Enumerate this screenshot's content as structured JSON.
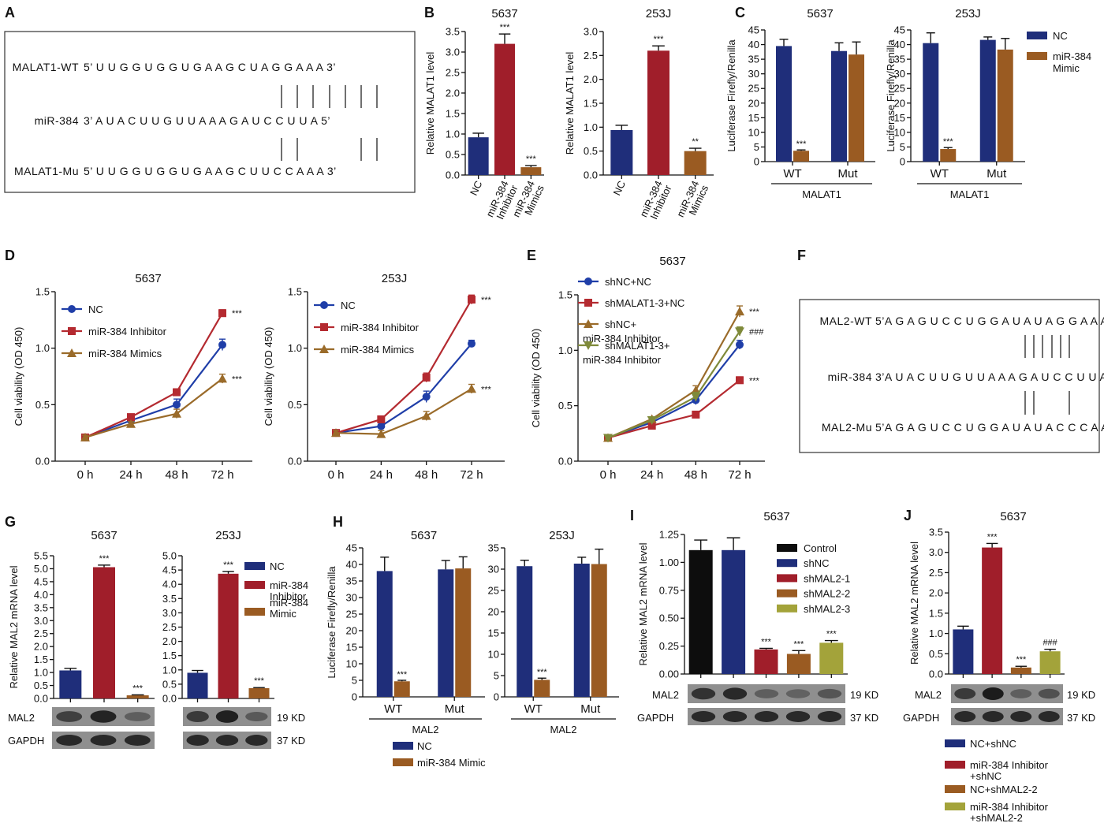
{
  "colors": {
    "navy": "#1f2e7a",
    "red": "#a01e2a",
    "brown": "#9a5b22",
    "black": "#0d0d0d",
    "olive": "#a3a33a",
    "blue_line": "#1f3ea8",
    "red_line": "#b42a30",
    "brown_line": "#9a6b2a",
    "olive_line": "#7f8a3a"
  },
  "panel_labels": {
    "A": "A",
    "B": "B",
    "C": "C",
    "D": "D",
    "E": "E",
    "F": "F",
    "G": "G",
    "H": "H",
    "I": "I",
    "J": "J"
  },
  "panel_A": {
    "rows": [
      {
        "name": "MALAT1-WT",
        "seq": "5’ U U G G U G G U G A A G C U A G G A A A  3’"
      },
      {
        "name": "miR-384",
        "seq": "3’ A U A C U U G U U A A A G A U C C U U A  5’"
      },
      {
        "name": "MALAT1-Mu",
        "seq": "5’ U U G G U G G U G A A G C U U C C A A A  3’"
      }
    ]
  },
  "panel_F": {
    "rows": [
      {
        "name": "MAL2-WT",
        "seq": "5’A G A G U C C U G G A U A U A G G A A A 3’"
      },
      {
        "name": "miR-384",
        "seq": "3’A U A C U U G U U A A A G A U C C U U A 5’"
      },
      {
        "name": "MAL2-Mu",
        "seq": "5’A G A G U C C U G G A U A U A C C C A A 3’"
      }
    ]
  },
  "blots": {
    "mal2": "MAL2",
    "gapdh": "GAPDH",
    "kd19": "19 KD",
    "kd37": "37 KD"
  },
  "chart_data": [
    {
      "id": "B1",
      "type": "bar",
      "title": "5637",
      "ylabel": "Relative MALAT1 level",
      "ylim": [
        0,
        3.5
      ],
      "yticks": [
        "0.0",
        "0.5",
        "1.0",
        "1.5",
        "2.0",
        "2.5",
        "3.0",
        "3.5"
      ],
      "categories": [
        "NC",
        "miR-384 Inhibitor",
        "miR-384 Mimics"
      ],
      "values": [
        0.92,
        3.2,
        0.19
      ],
      "errors": [
        0.1,
        0.24,
        0.04
      ],
      "bar_colors": [
        "navy",
        "red",
        "brown"
      ],
      "significance": [
        "",
        "***",
        "***"
      ]
    },
    {
      "id": "B2",
      "type": "bar",
      "title": "253J",
      "ylabel": "Relative MALAT1 level",
      "ylim": [
        0,
        3.0
      ],
      "yticks": [
        "0.0",
        "0.5",
        "1.0",
        "1.5",
        "2.0",
        "2.5",
        "3.0"
      ],
      "categories": [
        "NC",
        "miR-384 Inhibitor",
        "miR-384 Mimics"
      ],
      "values": [
        0.94,
        2.6,
        0.5
      ],
      "errors": [
        0.1,
        0.1,
        0.06
      ],
      "bar_colors": [
        "navy",
        "red",
        "brown"
      ],
      "significance": [
        "",
        "***",
        "**"
      ]
    },
    {
      "id": "C1",
      "type": "bar",
      "title": "5637",
      "ylabel": "Luciferase Firefly/Renilla",
      "ylim": [
        0,
        45
      ],
      "yticks": [
        "0",
        "5",
        "10",
        "15",
        "20",
        "25",
        "30",
        "35",
        "40",
        "45"
      ],
      "categories": [
        "WT",
        "Mut"
      ],
      "group_label": "MALAT1",
      "series": [
        {
          "values": [
            39.5,
            37.8
          ],
          "errors": [
            2.3,
            2.8
          ],
          "color": "navy"
        },
        {
          "values": [
            3.7,
            36.6
          ],
          "errors": [
            0.3,
            4.3
          ],
          "color": "brown"
        }
      ],
      "significance": [
        "***",
        ""
      ]
    },
    {
      "id": "C2",
      "type": "bar",
      "title": "253J",
      "ylabel": "Luciferase Firefly/Renilla",
      "ylim": [
        0,
        45
      ],
      "yticks": [
        "0",
        "5",
        "10",
        "15",
        "20",
        "25",
        "30",
        "35",
        "40",
        "45"
      ],
      "categories": [
        "WT",
        "Mut"
      ],
      "group_label": "MALAT1",
      "series": [
        {
          "name": "NC",
          "values": [
            40.5,
            41.6
          ],
          "errors": [
            3.5,
            1.0
          ],
          "color": "navy"
        },
        {
          "name": "miR-384 Mimic",
          "values": [
            4.3,
            38.3
          ],
          "errors": [
            0.5,
            3.8
          ],
          "color": "brown"
        }
      ],
      "significance": [
        "***",
        ""
      ]
    },
    {
      "id": "D1",
      "type": "line",
      "title": "5637",
      "ylabel": "Cell viability (OD 450)",
      "ylim": [
        0,
        1.5
      ],
      "yticks": [
        "0.0",
        "0.5",
        "1.0",
        "1.5"
      ],
      "x": [
        "0 h",
        "24 h",
        "48 h",
        "72 h"
      ],
      "series": [
        {
          "name": "NC",
          "values": [
            0.21,
            0.36,
            0.5,
            1.03
          ],
          "errors": [
            0.02,
            0.03,
            0.05,
            0.05
          ],
          "color": "blue_line",
          "marker": "circle"
        },
        {
          "name": "miR-384 Inhibitor",
          "values": [
            0.21,
            0.39,
            0.61,
            1.31
          ],
          "errors": [
            0.02,
            0.02,
            0.03,
            0.03
          ],
          "color": "red_line",
          "marker": "square"
        },
        {
          "name": "miR-384 Mimics",
          "values": [
            0.21,
            0.33,
            0.42,
            0.73
          ],
          "errors": [
            0.02,
            0.02,
            0.04,
            0.04
          ],
          "color": "brown_line",
          "marker": "triangle"
        }
      ],
      "annotations": [
        {
          "text": "***",
          "series": 1
        },
        {
          "text": "***",
          "series": 2
        }
      ]
    },
    {
      "id": "D2",
      "type": "line",
      "title": "253J",
      "ylabel": "Cell viability (OD 450)",
      "ylim": [
        0,
        1.5
      ],
      "yticks": [
        "0.0",
        "0.5",
        "1.0",
        "1.5"
      ],
      "x": [
        "0 h",
        "24 h",
        "48 h",
        "72 h"
      ],
      "series": [
        {
          "name": "NC",
          "values": [
            0.25,
            0.31,
            0.57,
            1.04
          ],
          "errors": [
            0.02,
            0.03,
            0.05,
            0.03
          ],
          "color": "blue_line",
          "marker": "circle"
        },
        {
          "name": "miR-384 Inhibitor",
          "values": [
            0.25,
            0.37,
            0.74,
            1.43
          ],
          "errors": [
            0.02,
            0.03,
            0.04,
            0.04
          ],
          "color": "red_line",
          "marker": "square"
        },
        {
          "name": "miR-384 Mimics",
          "values": [
            0.25,
            0.24,
            0.4,
            0.64
          ],
          "errors": [
            0.02,
            0.03,
            0.04,
            0.04
          ],
          "color": "brown_line",
          "marker": "triangle"
        }
      ],
      "annotations": [
        {
          "text": "***",
          "series": 1
        },
        {
          "text": "***",
          "series": 2
        }
      ]
    },
    {
      "id": "E",
      "type": "line",
      "title": "5637",
      "ylabel": "Cell viability (OD 450)",
      "ylim": [
        0,
        1.5
      ],
      "yticks": [
        "0.0",
        "0.5",
        "1.0",
        "1.5"
      ],
      "x": [
        "0 h",
        "24 h",
        "48 h",
        "72 h"
      ],
      "series": [
        {
          "name": "shNC+NC",
          "values": [
            0.21,
            0.35,
            0.55,
            1.05
          ],
          "errors": [
            0.02,
            0.02,
            0.04,
            0.04
          ],
          "color": "blue_line",
          "marker": "circle"
        },
        {
          "name": "shMALAT1-3+NC",
          "values": [
            0.21,
            0.32,
            0.42,
            0.73
          ],
          "errors": [
            0.02,
            0.02,
            0.03,
            0.03
          ],
          "color": "red_line",
          "marker": "square"
        },
        {
          "name": "shNC+ miR-384 Inhibitor",
          "values": [
            0.21,
            0.38,
            0.64,
            1.35
          ],
          "errors": [
            0.02,
            0.02,
            0.04,
            0.05
          ],
          "color": "brown_line",
          "marker": "triangle"
        },
        {
          "name": "shMALAT1-3+ miR-384 Inhibitor",
          "values": [
            0.21,
            0.37,
            0.58,
            1.17
          ],
          "errors": [
            0.02,
            0.02,
            0.04,
            0.04
          ],
          "color": "olive_line",
          "marker": "invtriangle"
        }
      ],
      "annotations": [
        {
          "text": "***",
          "series": 2
        },
        {
          "text": "###",
          "series": 3
        },
        {
          "text": "***",
          "series": 1
        }
      ]
    },
    {
      "id": "G1",
      "type": "bar",
      "title": "5637",
      "ylabel": "Relative MAL2 mRNA level",
      "ylim": [
        0,
        5.5
      ],
      "yticks": [
        "0.0",
        "0.5",
        "1.0",
        "1.5",
        "2.0",
        "2.5",
        "3.0",
        "3.5",
        "4.0",
        "4.5",
        "5.0",
        "5.5"
      ],
      "categories": [
        "NC",
        "miR-384 Inhibitor",
        "miR-384 Mimic"
      ],
      "values": [
        1.08,
        5.06,
        0.12
      ],
      "errors": [
        0.08,
        0.08,
        0.02
      ],
      "bar_colors": [
        "navy",
        "red",
        "brown"
      ],
      "significance": [
        "",
        "***",
        "***"
      ]
    },
    {
      "id": "G2",
      "type": "bar",
      "title": "253J",
      "ylabel": "",
      "ylim": [
        0,
        5.0
      ],
      "yticks": [
        "0.0",
        "0.5",
        "1.0",
        "1.5",
        "2.0",
        "2.5",
        "3.0",
        "3.5",
        "4.0",
        "4.5",
        "5.0"
      ],
      "categories": [
        "NC",
        "miR-384 Inhibitor",
        "miR-384 Mimic"
      ],
      "values": [
        0.9,
        4.37,
        0.36
      ],
      "errors": [
        0.08,
        0.08,
        0.02
      ],
      "bar_colors": [
        "navy",
        "red",
        "brown"
      ],
      "significance": [
        "",
        "***",
        "***"
      ],
      "legend": [
        "NC",
        "miR-384 Inhibitor",
        "miR-384 Mimic"
      ]
    },
    {
      "id": "H1",
      "type": "bar",
      "title": "5637",
      "ylabel": "Luciferase Firefly/Renilla",
      "ylim": [
        0,
        45
      ],
      "yticks": [
        "0",
        "5",
        "10",
        "15",
        "20",
        "25",
        "30",
        "35",
        "40",
        "45"
      ],
      "categories": [
        "WT",
        "Mut"
      ],
      "group_label": "MAL2",
      "series": [
        {
          "name": "NC",
          "values": [
            38.0,
            38.5
          ],
          "errors": [
            4.2,
            2.7
          ],
          "color": "navy"
        },
        {
          "name": "miR-384 Mimic",
          "values": [
            4.7,
            38.8
          ],
          "errors": [
            0.3,
            3.5
          ],
          "color": "brown"
        }
      ],
      "significance": [
        "***",
        ""
      ]
    },
    {
      "id": "H2",
      "type": "bar",
      "title": "253J",
      "ylabel": "",
      "ylim": [
        0,
        35
      ],
      "yticks": [
        "0",
        "5",
        "10",
        "15",
        "20",
        "25",
        "30",
        "35"
      ],
      "categories": [
        "WT",
        "Mut"
      ],
      "group_label": "MAL2",
      "series": [
        {
          "values": [
            30.7,
            31.3
          ],
          "errors": [
            1.4,
            1.5
          ],
          "color": "navy"
        },
        {
          "values": [
            4.0,
            31.2
          ],
          "errors": [
            0.4,
            3.5
          ],
          "color": "brown"
        }
      ],
      "significance": [
        "***",
        ""
      ]
    },
    {
      "id": "I",
      "type": "bar",
      "title": "5637",
      "ylabel": "Relative MAL2 mRNA level",
      "ylim": [
        0,
        1.25
      ],
      "yticks": [
        "0.00",
        "0.25",
        "0.50",
        "0.75",
        "1.00",
        "1.25"
      ],
      "categories": [
        "Control",
        "shNC",
        "shMAL2-1",
        "shMAL2-2",
        "shMAL2-3"
      ],
      "values": [
        1.11,
        1.11,
        0.22,
        0.18,
        0.28
      ],
      "errors": [
        0.09,
        0.11,
        0.01,
        0.03,
        0.02
      ],
      "bar_colors": [
        "black",
        "navy",
        "red",
        "brown",
        "olive"
      ],
      "significance": [
        "",
        "",
        "***",
        "***",
        "***"
      ]
    },
    {
      "id": "J",
      "type": "bar",
      "title": "5637",
      "ylabel": "Relative MAL2 mRNA level",
      "ylim": [
        0,
        3.5
      ],
      "yticks": [
        "0.0",
        "0.5",
        "1.0",
        "1.5",
        "2.0",
        "2.5",
        "3.0",
        "3.5"
      ],
      "categories": [
        "NC+shNC",
        "miR-384 Inhibitor +shNC",
        "NC+shMAL2-2",
        "miR-384 Inhibitor +shMAL2-2"
      ],
      "values": [
        1.1,
        3.12,
        0.16,
        0.56
      ],
      "errors": [
        0.08,
        0.1,
        0.03,
        0.05
      ],
      "bar_colors": [
        "navy",
        "red",
        "brown",
        "olive"
      ],
      "significance": [
        "",
        "***",
        "***",
        "###"
      ]
    }
  ]
}
